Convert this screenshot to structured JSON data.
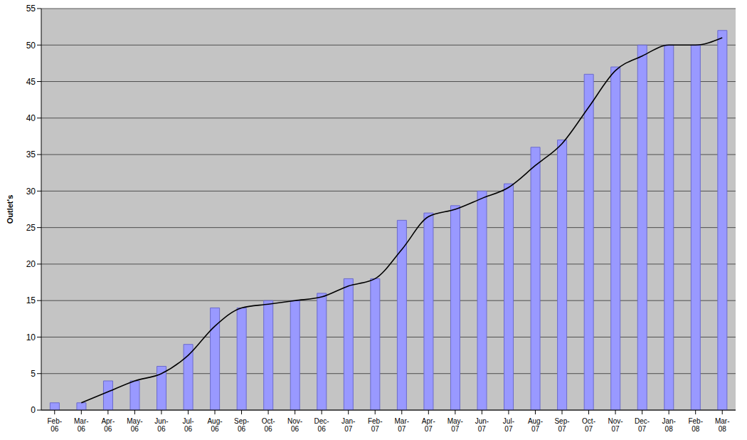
{
  "chart_data": {
    "type": "bar",
    "y_label": "Outlet's",
    "categories": [
      "Feb-06",
      "Mar-06",
      "Apr-06",
      "May-06",
      "Jun-06",
      "Jul-06",
      "Aug-06",
      "Sep-06",
      "Oct-06",
      "Nov-06",
      "Dec-06",
      "Jan-07",
      "Feb-07",
      "Mar-07",
      "Apr-07",
      "May-07",
      "Jun-07",
      "Jul-07",
      "Aug-07",
      "Sep-07",
      "Oct-07",
      "Nov-07",
      "Dec-07",
      "Jan-08",
      "Feb-08",
      "Mar-08"
    ],
    "series": [
      {
        "type": "bar",
        "color": "#9999ff",
        "values": [
          1,
          1,
          4,
          4,
          6,
          9,
          14,
          14,
          15,
          15,
          16,
          18,
          18,
          26,
          27,
          28,
          30,
          31,
          36,
          37,
          46,
          47,
          50,
          50,
          50,
          52
        ]
      },
      {
        "type": "line",
        "color": "#000000",
        "values": [
          null,
          1,
          2.5,
          4,
          5,
          7.5,
          11.5,
          14,
          14.5,
          15,
          15.5,
          17,
          18,
          22,
          26.5,
          27.5,
          29,
          30.5,
          33.5,
          36.5,
          41.5,
          46.5,
          48.5,
          50,
          50,
          51
        ]
      }
    ],
    "ylim": [
      0,
      55
    ],
    "yticks": [
      0,
      5,
      10,
      15,
      20,
      25,
      30,
      35,
      40,
      45,
      50,
      55
    ],
    "grid": true
  }
}
